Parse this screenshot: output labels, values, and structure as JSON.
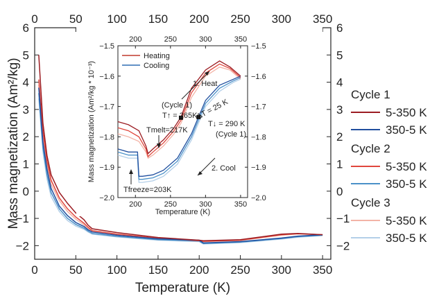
{
  "chart_data": [
    {
      "type": "line",
      "xlabel": "Temperature (K)",
      "ylabel": "Mass magnetization (Am²/kg)",
      "xlim": [
        0,
        360
      ],
      "ylim": [
        -2.5,
        6
      ],
      "xticks": [
        "0",
        "50",
        "100",
        "150",
        "200",
        "250",
        "300",
        "350"
      ],
      "yticks": [
        "-2",
        "-1",
        "0",
        "1",
        "2",
        "3",
        "4",
        "5",
        "6"
      ],
      "grid": false,
      "legend_position": "right",
      "legend_groups": [
        {
          "title": "Cycle 1",
          "entries": [
            "5-350 K",
            "350-5 K"
          ]
        },
        {
          "title": "Cycle 2",
          "entries": [
            "5-350 K",
            "350-5 K"
          ]
        },
        {
          "title": "Cycle 3",
          "entries": [
            "5-350 K",
            "350-5 K"
          ]
        }
      ],
      "series": [
        {
          "cycle": "Cycle 1",
          "name": "5-350 K",
          "color": "#9b1c22",
          "x": [
            5,
            10,
            15,
            20,
            30,
            40,
            50,
            60,
            65,
            70,
            100,
            150,
            200,
            205,
            250,
            300,
            320,
            350
          ],
          "y": [
            5.0,
            2.5,
            1.3,
            0.6,
            -0.05,
            -0.45,
            -0.8,
            -1.05,
            -1.25,
            -1.38,
            -1.52,
            -1.7,
            -1.8,
            -1.82,
            -1.78,
            -1.58,
            -1.55,
            -1.6
          ]
        },
        {
          "cycle": "Cycle 1",
          "name": "350-5 K",
          "color": "#1f4e9e",
          "x": [
            5,
            10,
            15,
            20,
            30,
            40,
            50,
            60,
            65,
            70,
            100,
            150,
            200,
            205,
            250,
            300,
            320,
            350
          ],
          "y": [
            3.8,
            1.8,
            0.8,
            0.1,
            -0.55,
            -0.9,
            -1.15,
            -1.3,
            -1.42,
            -1.5,
            -1.62,
            -1.75,
            -1.8,
            -1.9,
            -1.85,
            -1.72,
            -1.65,
            -1.6
          ]
        },
        {
          "cycle": "Cycle 2",
          "name": "5-350 K",
          "color": "#e0463c",
          "x": [
            5,
            10,
            15,
            20,
            30,
            40,
            50,
            60,
            65,
            70,
            100,
            150,
            200,
            205,
            250,
            300,
            320,
            350
          ],
          "y": [
            4.1,
            2.2,
            1.1,
            0.4,
            -0.25,
            -0.65,
            -0.95,
            -1.18,
            -1.33,
            -1.45,
            -1.58,
            -1.73,
            -1.82,
            -1.84,
            -1.8,
            -1.6,
            -1.56,
            -1.6
          ]
        },
        {
          "cycle": "Cycle 2",
          "name": "350-5 K",
          "color": "#4a90c8",
          "x": [
            5,
            10,
            15,
            20,
            30,
            40,
            50,
            60,
            65,
            70,
            100,
            150,
            200,
            205,
            250,
            300,
            320,
            350
          ],
          "y": [
            3.6,
            1.6,
            0.6,
            -0.05,
            -0.65,
            -1.0,
            -1.22,
            -1.36,
            -1.47,
            -1.55,
            -1.66,
            -1.78,
            -1.83,
            -1.92,
            -1.87,
            -1.74,
            -1.67,
            -1.62
          ]
        },
        {
          "cycle": "Cycle 3",
          "name": "5-350 K",
          "color": "#f3b3a6",
          "x": [
            5,
            10,
            15,
            20,
            30,
            40,
            50,
            60,
            65,
            70,
            100,
            150,
            200,
            205,
            250,
            300,
            320,
            350
          ],
          "y": [
            3.9,
            2.0,
            0.95,
            0.25,
            -0.35,
            -0.75,
            -1.03,
            -1.24,
            -1.38,
            -1.48,
            -1.6,
            -1.75,
            -1.83,
            -1.85,
            -1.81,
            -1.62,
            -1.57,
            -1.6
          ]
        },
        {
          "cycle": "Cycle 3",
          "name": "350-5 K",
          "color": "#b3cfe8",
          "x": [
            5,
            10,
            15,
            20,
            30,
            40,
            50,
            60,
            65,
            70,
            100,
            150,
            200,
            205,
            250,
            300,
            320,
            350
          ],
          "y": [
            3.4,
            1.45,
            0.45,
            -0.2,
            -0.75,
            -1.08,
            -1.28,
            -1.4,
            -1.5,
            -1.58,
            -1.68,
            -1.8,
            -1.85,
            -1.94,
            -1.89,
            -1.76,
            -1.69,
            -1.63
          ]
        }
      ]
    },
    {
      "type": "line",
      "xlabel": "Temperature (K)",
      "ylabel": "Mass magnetization (Am²/kg * 10⁻³)",
      "xlim": [
        175,
        360
      ],
      "ylim": [
        -2.0,
        -1.5
      ],
      "xticks": [
        "200",
        "250",
        "300",
        "350"
      ],
      "yticks": [
        "-1.5",
        "-1.6",
        "-1.7",
        "-1.8",
        "-1.9",
        "-2.0"
      ],
      "grid": false,
      "legend_position": "top-left",
      "legend": [
        {
          "name": "Heating",
          "color": "#c0392b"
        },
        {
          "name": "Cooling",
          "color": "#2e6db3"
        }
      ],
      "annotations": {
        "heat": "1. Heat",
        "cool": "2. Cool",
        "cycle_left": "(Cycle 1)",
        "tup": "T↑ = 265K",
        "tmelt": "Tmelt=217K",
        "delta": "ΔT = 25 K",
        "tdown": "T↓ = 290 K",
        "cycle_right": "(Cycle 1)",
        "tfreeze": "Tfreeze=203K"
      },
      "markers": [
        {
          "x": 265,
          "y": -1.737
        },
        {
          "x": 290,
          "y": -1.735
        }
      ],
      "series": [
        {
          "group": "Heating",
          "color": "#9b1c22",
          "x": [
            175,
            190,
            205,
            215,
            218,
            225,
            240,
            255,
            265,
            280,
            300,
            320,
            335,
            350
          ],
          "y": [
            -1.75,
            -1.76,
            -1.78,
            -1.83,
            -1.855,
            -1.84,
            -1.81,
            -1.77,
            -1.735,
            -1.64,
            -1.58,
            -1.55,
            -1.57,
            -1.6
          ]
        },
        {
          "group": "Heating",
          "color": "#e0463c",
          "x": [
            175,
            190,
            205,
            215,
            218,
            225,
            240,
            255,
            265,
            280,
            300,
            320,
            335,
            350
          ],
          "y": [
            -1.77,
            -1.78,
            -1.8,
            -1.84,
            -1.865,
            -1.85,
            -1.82,
            -1.78,
            -1.745,
            -1.655,
            -1.59,
            -1.56,
            -1.575,
            -1.605
          ]
        },
        {
          "group": "Heating",
          "color": "#f3b3a6",
          "x": [
            175,
            190,
            205,
            215,
            218,
            225,
            240,
            255,
            265,
            280,
            300,
            320,
            335,
            350
          ],
          "y": [
            -1.79,
            -1.8,
            -1.815,
            -1.85,
            -1.87,
            -1.86,
            -1.83,
            -1.79,
            -1.755,
            -1.67,
            -1.6,
            -1.57,
            -1.58,
            -1.61
          ]
        },
        {
          "group": "Cooling",
          "color": "#1f4e9e",
          "x": [
            350,
            340,
            320,
            300,
            290,
            280,
            260,
            240,
            225,
            210,
            205,
            203,
            190,
            175
          ],
          "y": [
            -1.6,
            -1.61,
            -1.63,
            -1.68,
            -1.735,
            -1.79,
            -1.87,
            -1.91,
            -1.925,
            -1.93,
            -1.93,
            -1.85,
            -1.85,
            -1.84
          ]
        },
        {
          "group": "Cooling",
          "color": "#4a90c8",
          "x": [
            350,
            340,
            320,
            300,
            290,
            280,
            260,
            240,
            225,
            210,
            205,
            203,
            190,
            175
          ],
          "y": [
            -1.605,
            -1.615,
            -1.64,
            -1.69,
            -1.745,
            -1.8,
            -1.88,
            -1.92,
            -1.935,
            -1.94,
            -1.94,
            -1.86,
            -1.86,
            -1.85
          ]
        },
        {
          "group": "Cooling",
          "color": "#b3cfe8",
          "x": [
            350,
            340,
            320,
            300,
            290,
            280,
            260,
            240,
            225,
            210,
            205,
            203,
            190,
            175
          ],
          "y": [
            -1.61,
            -1.62,
            -1.65,
            -1.7,
            -1.755,
            -1.81,
            -1.89,
            -1.93,
            -1.945,
            -1.95,
            -1.95,
            -1.87,
            -1.87,
            -1.86
          ]
        }
      ]
    }
  ]
}
